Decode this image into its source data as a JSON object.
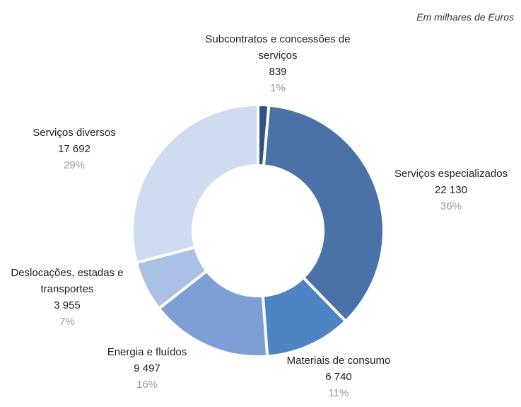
{
  "chart_data": {
    "type": "donut",
    "subtitle": "Em milhares de Euros",
    "categories": [
      "Subcontratos e concessões de serviços",
      "Serviços especializados",
      "Materiais de consumo",
      "Energia e fluídos",
      "Deslocações, estadas e transportes",
      "Serviços diversos"
    ],
    "values": [
      839,
      22130,
      6740,
      9497,
      3955,
      17692
    ],
    "value_labels": [
      "839",
      "22 130",
      "6 740",
      "9 497",
      "3 955",
      "17 692"
    ],
    "percent_labels": [
      "1%",
      "36%",
      "11%",
      "16%",
      "7%",
      "29%"
    ],
    "colors": [
      "#2f5185",
      "#4a72a8",
      "#4f84c4",
      "#7d9fd5",
      "#aac0e4",
      "#cfdbf0"
    ]
  }
}
